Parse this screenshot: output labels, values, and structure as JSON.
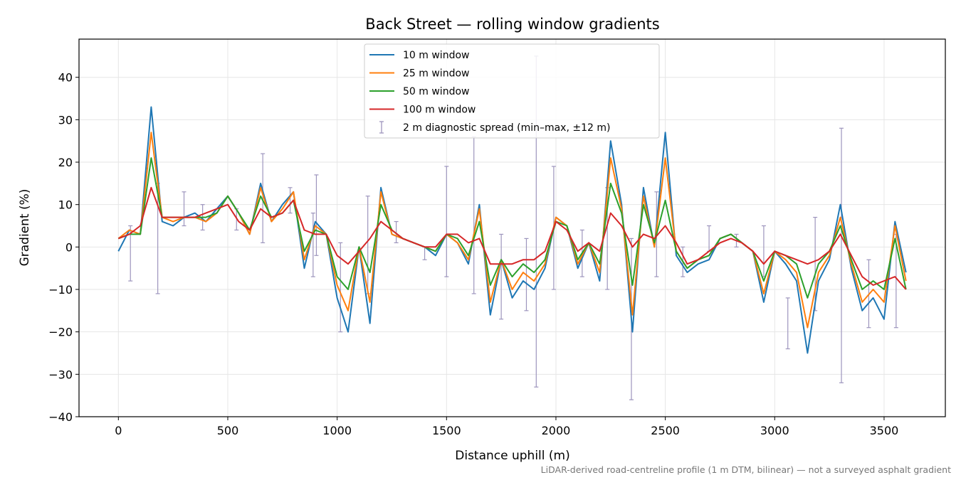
{
  "chart_data": {
    "type": "line",
    "title": "Back Street — rolling window gradients",
    "xlabel": "Distance uphill (m)",
    "ylabel": "Gradient (%)",
    "xlim": [
      -180,
      3780
    ],
    "ylim": [
      -40,
      49
    ],
    "xticks": [
      0,
      500,
      1000,
      1500,
      2000,
      2500,
      3000,
      3500
    ],
    "yticks": [
      -40,
      -30,
      -20,
      -10,
      0,
      10,
      20,
      30,
      40
    ],
    "xtick_labels": [
      "0",
      "500",
      "1000",
      "1500",
      "2000",
      "2500",
      "3000",
      "3500"
    ],
    "ytick_labels": [
      "−40",
      "−30",
      "−20",
      "−10",
      "0",
      "10",
      "20",
      "30",
      "40"
    ],
    "grid": true,
    "legend_position": "top-center",
    "footnote": "LiDAR-derived road-centreline profile (1 m DTM, bilinear) — not a surveyed asphalt gradient",
    "x": [
      0,
      50,
      100,
      150,
      200,
      250,
      300,
      350,
      400,
      450,
      500,
      550,
      600,
      650,
      700,
      750,
      800,
      850,
      900,
      950,
      1000,
      1050,
      1100,
      1150,
      1200,
      1250,
      1300,
      1350,
      1400,
      1450,
      1500,
      1550,
      1600,
      1650,
      1700,
      1750,
      1800,
      1850,
      1900,
      1950,
      2000,
      2050,
      2100,
      2150,
      2200,
      2250,
      2300,
      2350,
      2400,
      2450,
      2500,
      2550,
      2600,
      2650,
      2700,
      2750,
      2800,
      2850,
      2900,
      2950,
      3000,
      3050,
      3100,
      3150,
      3200,
      3250,
      3300,
      3350,
      3400,
      3450,
      3500,
      3550,
      3600
    ],
    "series": [
      {
        "name": "10 m window",
        "color": "#1f77b4",
        "values": [
          -1,
          4,
          3,
          33,
          6,
          5,
          7,
          8,
          6,
          9,
          12,
          8,
          3,
          15,
          6,
          10,
          13,
          -5,
          6,
          3,
          -12,
          -20,
          0,
          -18,
          14,
          3,
          2,
          1,
          0,
          -2,
          3,
          1,
          -4,
          10,
          -16,
          -3,
          -12,
          -8,
          -10,
          -5,
          7,
          5,
          -5,
          1,
          -8,
          25,
          10,
          -20,
          14,
          0,
          27,
          -2,
          -6,
          -4,
          -3,
          2,
          3,
          1,
          -1,
          -13,
          -1,
          -4,
          -8,
          -25,
          -8,
          -3,
          10,
          -5,
          -15,
          -12,
          -17,
          6,
          -6
        ]
      },
      {
        "name": "25 m window",
        "color": "#ff7f0e",
        "values": [
          2,
          4,
          3,
          27,
          7,
          6,
          7,
          7,
          6,
          8,
          12,
          8,
          3,
          14,
          6,
          9,
          13,
          -3,
          5,
          3,
          -9,
          -15,
          0,
          -13,
          13,
          3,
          2,
          1,
          0,
          -1,
          3,
          1,
          -3,
          9,
          -13,
          -3,
          -10,
          -6,
          -8,
          -4,
          7,
          5,
          -4,
          1,
          -6,
          21,
          9,
          -16,
          12,
          0,
          21,
          -1,
          -5,
          -3,
          -2,
          2,
          3,
          1,
          -1,
          -11,
          -1,
          -3,
          -6,
          -19,
          -6,
          -2,
          7,
          -4,
          -13,
          -10,
          -13,
          5,
          -8
        ]
      },
      {
        "name": "50 m window",
        "color": "#2ca02c",
        "values": [
          2,
          3,
          3,
          21,
          7,
          7,
          7,
          7,
          7,
          8,
          12,
          8,
          4,
          12,
          7,
          8,
          11,
          -1,
          4,
          3,
          -7,
          -10,
          0,
          -6,
          10,
          4,
          2,
          1,
          0,
          -1,
          3,
          2,
          -2,
          6,
          -9,
          -3,
          -7,
          -4,
          -6,
          -3,
          6,
          5,
          -3,
          1,
          -4,
          15,
          8,
          -9,
          10,
          1,
          11,
          -1,
          -5,
          -3,
          -2,
          2,
          3,
          1,
          -1,
          -8,
          -1,
          -2,
          -4,
          -12,
          -4,
          -1,
          5,
          -3,
          -10,
          -8,
          -10,
          2,
          -10
        ]
      },
      {
        "name": "100 m window",
        "color": "#d62728",
        "values": [
          2,
          3,
          5,
          14,
          7,
          7,
          7,
          7,
          8,
          9,
          10,
          6,
          4,
          9,
          7,
          8,
          11,
          4,
          3,
          3,
          -2,
          -4,
          -1,
          2,
          6,
          4,
          2,
          1,
          0,
          0,
          3,
          3,
          1,
          2,
          -4,
          -4,
          -4,
          -3,
          -3,
          -1,
          6,
          4,
          -1,
          1,
          -1,
          8,
          5,
          0,
          3,
          2,
          5,
          1,
          -4,
          -3,
          -1,
          1,
          2,
          1,
          -1,
          -4,
          -1,
          -2,
          -3,
          -4,
          -3,
          -1,
          3,
          -2,
          -7,
          -9,
          -8,
          -7,
          -10
        ]
      }
    ],
    "errorbar_series": {
      "name": "2 m diagnostic spread (min–max, ±12 m)",
      "color": "#9d95bd",
      "points": [
        {
          "x": 55,
          "ymin": -8,
          "ymax": 5
        },
        {
          "x": 180,
          "ymin": -11,
          "ymax": 15
        },
        {
          "x": 300,
          "ymin": 5,
          "ymax": 13
        },
        {
          "x": 385,
          "ymin": 4,
          "ymax": 10
        },
        {
          "x": 540,
          "ymin": 4,
          "ymax": 9
        },
        {
          "x": 660,
          "ymin": 1,
          "ymax": 22
        },
        {
          "x": 785,
          "ymin": 8,
          "ymax": 14
        },
        {
          "x": 890,
          "ymin": -7,
          "ymax": 8
        },
        {
          "x": 905,
          "ymin": -2,
          "ymax": 17
        },
        {
          "x": 1015,
          "ymin": -20,
          "ymax": 1
        },
        {
          "x": 1140,
          "ymin": -11,
          "ymax": 12
        },
        {
          "x": 1270,
          "ymin": 1,
          "ymax": 6
        },
        {
          "x": 1400,
          "ymin": -3,
          "ymax": 0
        },
        {
          "x": 1500,
          "ymin": -7,
          "ymax": 19
        },
        {
          "x": 1625,
          "ymin": -11,
          "ymax": 26
        },
        {
          "x": 1750,
          "ymin": -17,
          "ymax": 3
        },
        {
          "x": 1865,
          "ymin": -15,
          "ymax": 2
        },
        {
          "x": 1910,
          "ymin": -33,
          "ymax": 45
        },
        {
          "x": 1990,
          "ymin": -10,
          "ymax": 19
        },
        {
          "x": 2120,
          "ymin": -7,
          "ymax": 4
        },
        {
          "x": 2235,
          "ymin": -10,
          "ymax": 14
        },
        {
          "x": 2345,
          "ymin": -36,
          "ymax": 2
        },
        {
          "x": 2460,
          "ymin": -7,
          "ymax": 13
        },
        {
          "x": 2580,
          "ymin": -7,
          "ymax": 0
        },
        {
          "x": 2700,
          "ymin": -1,
          "ymax": 5
        },
        {
          "x": 2825,
          "ymin": 0,
          "ymax": 3
        },
        {
          "x": 2950,
          "ymin": -7,
          "ymax": 5
        },
        {
          "x": 3060,
          "ymin": -24,
          "ymax": -12
        },
        {
          "x": 3185,
          "ymin": -15,
          "ymax": 7
        },
        {
          "x": 3305,
          "ymin": -32,
          "ymax": 28
        },
        {
          "x": 3430,
          "ymin": -19,
          "ymax": -3
        },
        {
          "x": 3555,
          "ymin": -19,
          "ymax": 3
        }
      ]
    }
  }
}
